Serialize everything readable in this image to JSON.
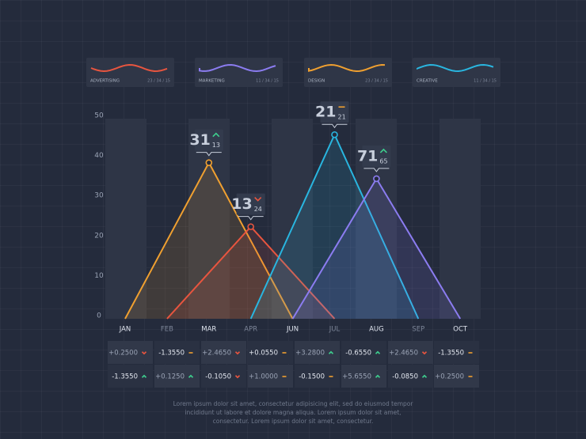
{
  "chart_data": {
    "type": "line",
    "categories": [
      "JAN",
      "FEB",
      "MAR",
      "APR",
      "JUN",
      "JUL",
      "AUG",
      "SEP",
      "OCT"
    ],
    "ylim": [
      0,
      50
    ],
    "yticks": [
      0,
      10,
      20,
      30,
      40,
      50
    ],
    "grid": false,
    "series": [
      {
        "name": "DESIGN",
        "color": "#f0a030",
        "stats": "23 / 34 / 15",
        "values": [
          0,
          19.5,
          39,
          19.5,
          0,
          null,
          null,
          null,
          null
        ],
        "annotation": {
          "main": 31,
          "sub": 13,
          "trend": "up"
        }
      },
      {
        "name": "ADVERTISING",
        "color": "#e8553f",
        "stats": "23 / 34 / 15",
        "values": [
          null,
          0,
          11.5,
          23,
          11.5,
          0,
          null,
          null,
          null
        ],
        "annotation": {
          "main": 13,
          "sub": 24,
          "trend": "down"
        }
      },
      {
        "name": "CREATIVE",
        "color": "#29b6e0",
        "stats": "11 / 34 / 15",
        "values": [
          null,
          null,
          null,
          0,
          23,
          46,
          23,
          0,
          null
        ],
        "annotation": {
          "main": 21,
          "sub": 21,
          "trend": "flat"
        }
      },
      {
        "name": "MARKETING",
        "color": "#8b7cf0",
        "stats": "11 / 34 / 15",
        "values": [
          null,
          null,
          null,
          null,
          0,
          17.5,
          35,
          17.5,
          0
        ],
        "annotation": {
          "main": 71,
          "sub": 65,
          "trend": "up"
        }
      }
    ],
    "legend_order": [
      1,
      3,
      0,
      2
    ],
    "table": [
      [
        {
          "text": "+0.2500",
          "trend": "down"
        },
        {
          "text": "-1.3550",
          "trend": "flat"
        },
        {
          "text": "+2.4650",
          "trend": "down"
        },
        {
          "text": "+0.0550",
          "trend": "flat"
        },
        {
          "text": "+3.2800",
          "trend": "up"
        },
        {
          "text": "-0.6550",
          "trend": "up"
        },
        {
          "text": "+2.4650",
          "trend": "down"
        },
        {
          "text": "-1.3550",
          "trend": "flat"
        }
      ],
      [
        {
          "text": "-1.3550",
          "trend": "up"
        },
        {
          "text": "+0.1250",
          "trend": "up"
        },
        {
          "text": "-0.1050",
          "trend": "down"
        },
        {
          "text": "+1.0000",
          "trend": "flat"
        },
        {
          "text": "-0.1500",
          "trend": "flat"
        },
        {
          "text": "+5.6550",
          "trend": "up"
        },
        {
          "text": "-0.0850",
          "trend": "up"
        },
        {
          "text": "+0.2500",
          "trend": "flat"
        }
      ]
    ],
    "footer": [
      "Lorem ipsum dolor sit amet, consectetur adipisicing elit, sed do eiusmod tempor",
      "incididunt ut labore et dolore magna aliqua. Lorem ipsum dolor sit amet,",
      "consectetur. Lorem ipsum dolor sit amet, consectetur."
    ]
  }
}
